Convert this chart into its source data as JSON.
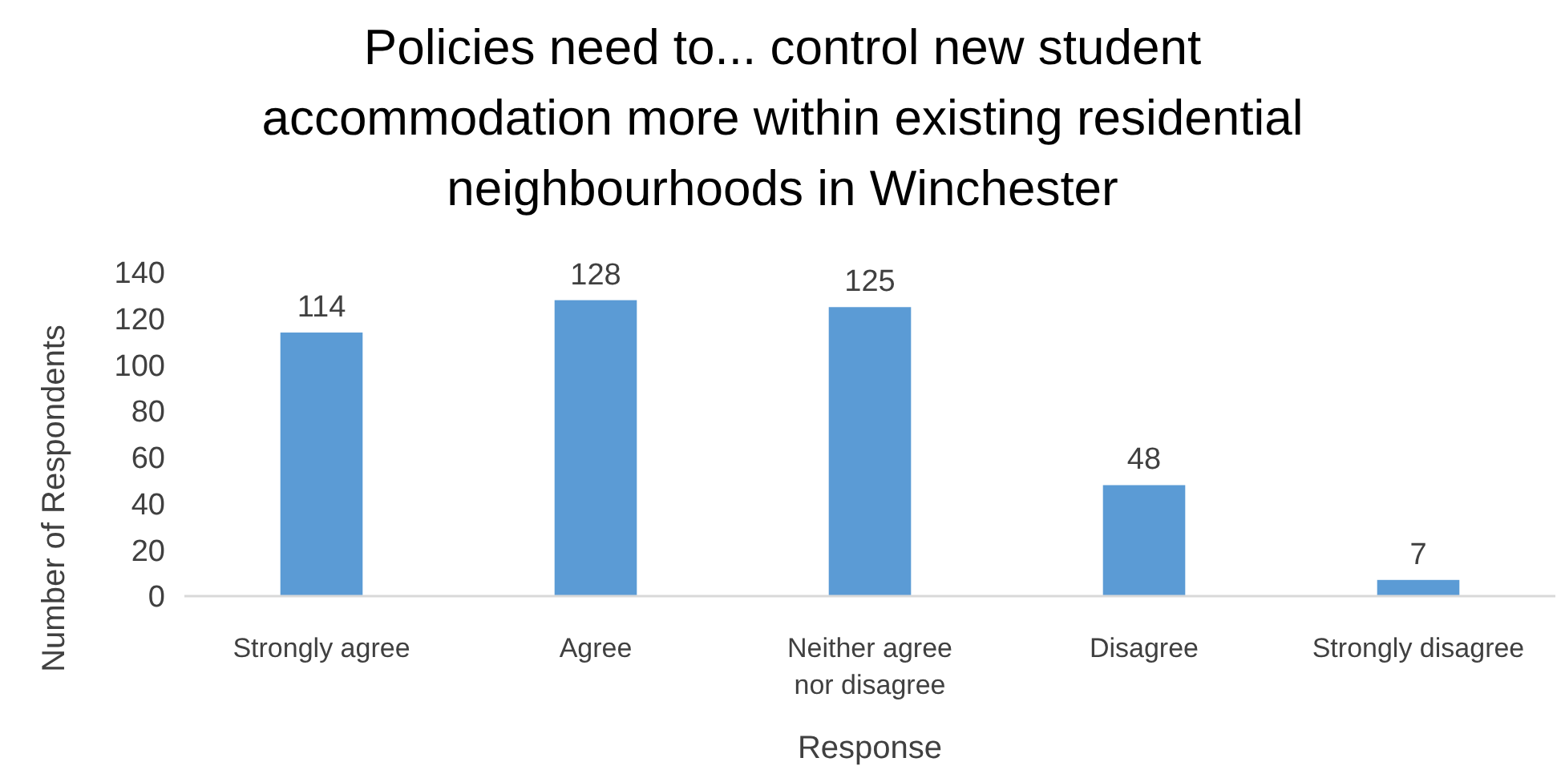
{
  "chart_data": {
    "type": "bar",
    "title": "Policies need to... control new student\naccommodation more within existing residential\nneighbourhoods in Winchester",
    "xlabel": "Response",
    "ylabel": "Number of Respondents",
    "categories": [
      "Strongly agree",
      "Agree",
      "Neither agree nor disagree",
      "Disagree",
      "Strongly disagree"
    ],
    "values": [
      114,
      128,
      125,
      48,
      7
    ],
    "color": "#5b9bd5",
    "ylim": [
      0,
      140
    ],
    "yticks": [
      0,
      20,
      40,
      60,
      80,
      100,
      120,
      140
    ],
    "data_labels": true,
    "grid": false
  }
}
